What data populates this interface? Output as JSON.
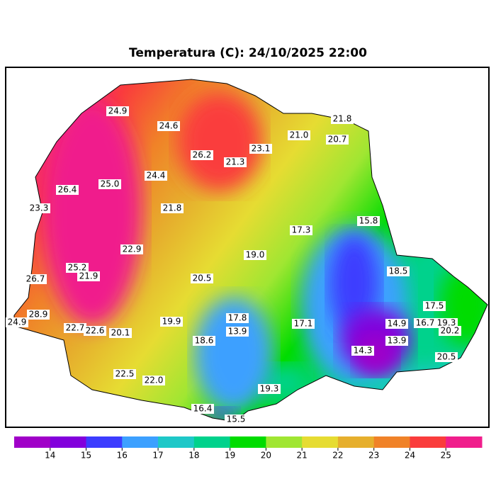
{
  "map": {
    "title": "Temperatura (C): 24/10/2025 22:00",
    "station_labels": [
      "24.9",
      "24.6",
      "26.2",
      "21.3",
      "23.1",
      "21.0",
      "20.7",
      "21.8",
      "26.4",
      "25.0",
      "24.4",
      "23.3",
      "21.8",
      "17.3",
      "15.8",
      "22.9",
      "19.0",
      "26.7",
      "25.2",
      "21.9",
      "20.5",
      "18.5",
      "17.5",
      "28.9",
      "24.9",
      "22.7",
      "22.6",
      "20.1",
      "19.9",
      "17.8",
      "13.9",
      "17.1",
      "14.9",
      "16.7",
      "19.3",
      "20.2",
      "18.6",
      "13.9",
      "14.3",
      "20.5",
      "22.5",
      "22.0",
      "19.3",
      "16.4",
      "15.5"
    ],
    "colorbar": {
      "colors": [
        "#a000c8",
        "#8200dc",
        "#3c3cff",
        "#3ca0ff",
        "#1ec8c8",
        "#00d28c",
        "#00dc00",
        "#a0e632",
        "#e6dc32",
        "#e6af2d",
        "#f08228",
        "#fa3c3c",
        "#f01e8c"
      ],
      "ticks": [
        14,
        15,
        16,
        17,
        18,
        19,
        20,
        21,
        22,
        23,
        24,
        25
      ]
    }
  }
}
